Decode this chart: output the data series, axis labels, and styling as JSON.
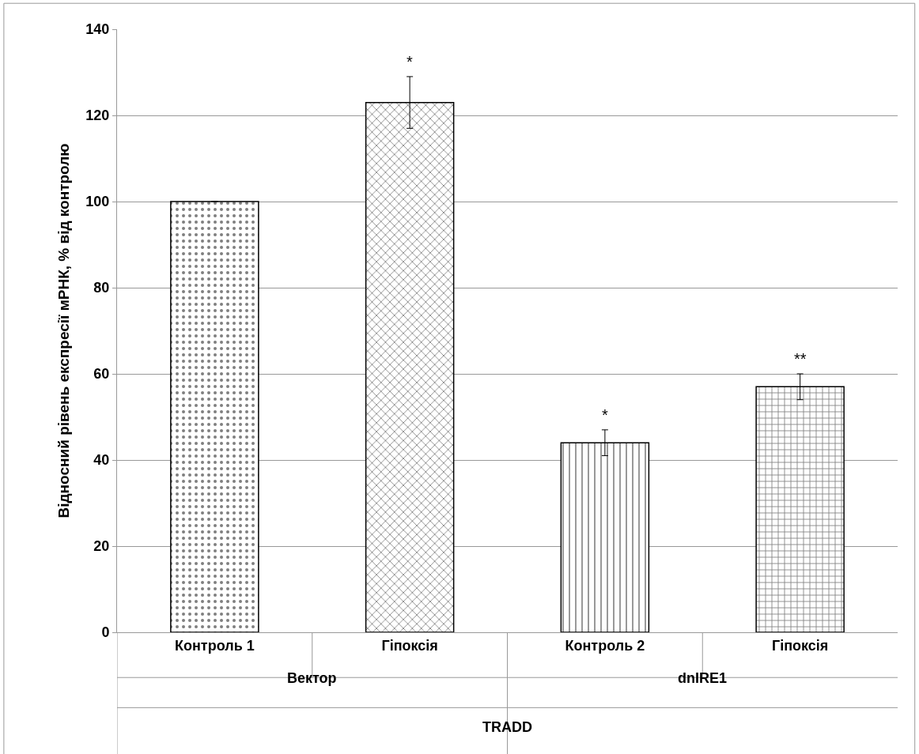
{
  "chart_data": {
    "type": "bar",
    "ylabel": "Відносний рівень експресії мРНК, % від контролю",
    "categories": [
      "Контроль 1",
      "Гіпоксія",
      "Контроль 2",
      "Гіпоксія"
    ],
    "values": [
      100,
      123,
      44,
      57
    ],
    "errors": [
      null,
      6,
      3,
      3
    ],
    "value_labels": [
      null,
      "*",
      "*",
      "**"
    ],
    "colors": [
      "#000000",
      "#000000",
      "#000000",
      "#000000"
    ],
    "annotations": [
      "Вектор",
      "dnIRE1",
      "TRADD"
    ],
    "ylim": [
      0,
      140
    ],
    "yticks": [
      0,
      20,
      40,
      60,
      80,
      100,
      120,
      140
    ],
    "grid": "y",
    "legend": false
  }
}
